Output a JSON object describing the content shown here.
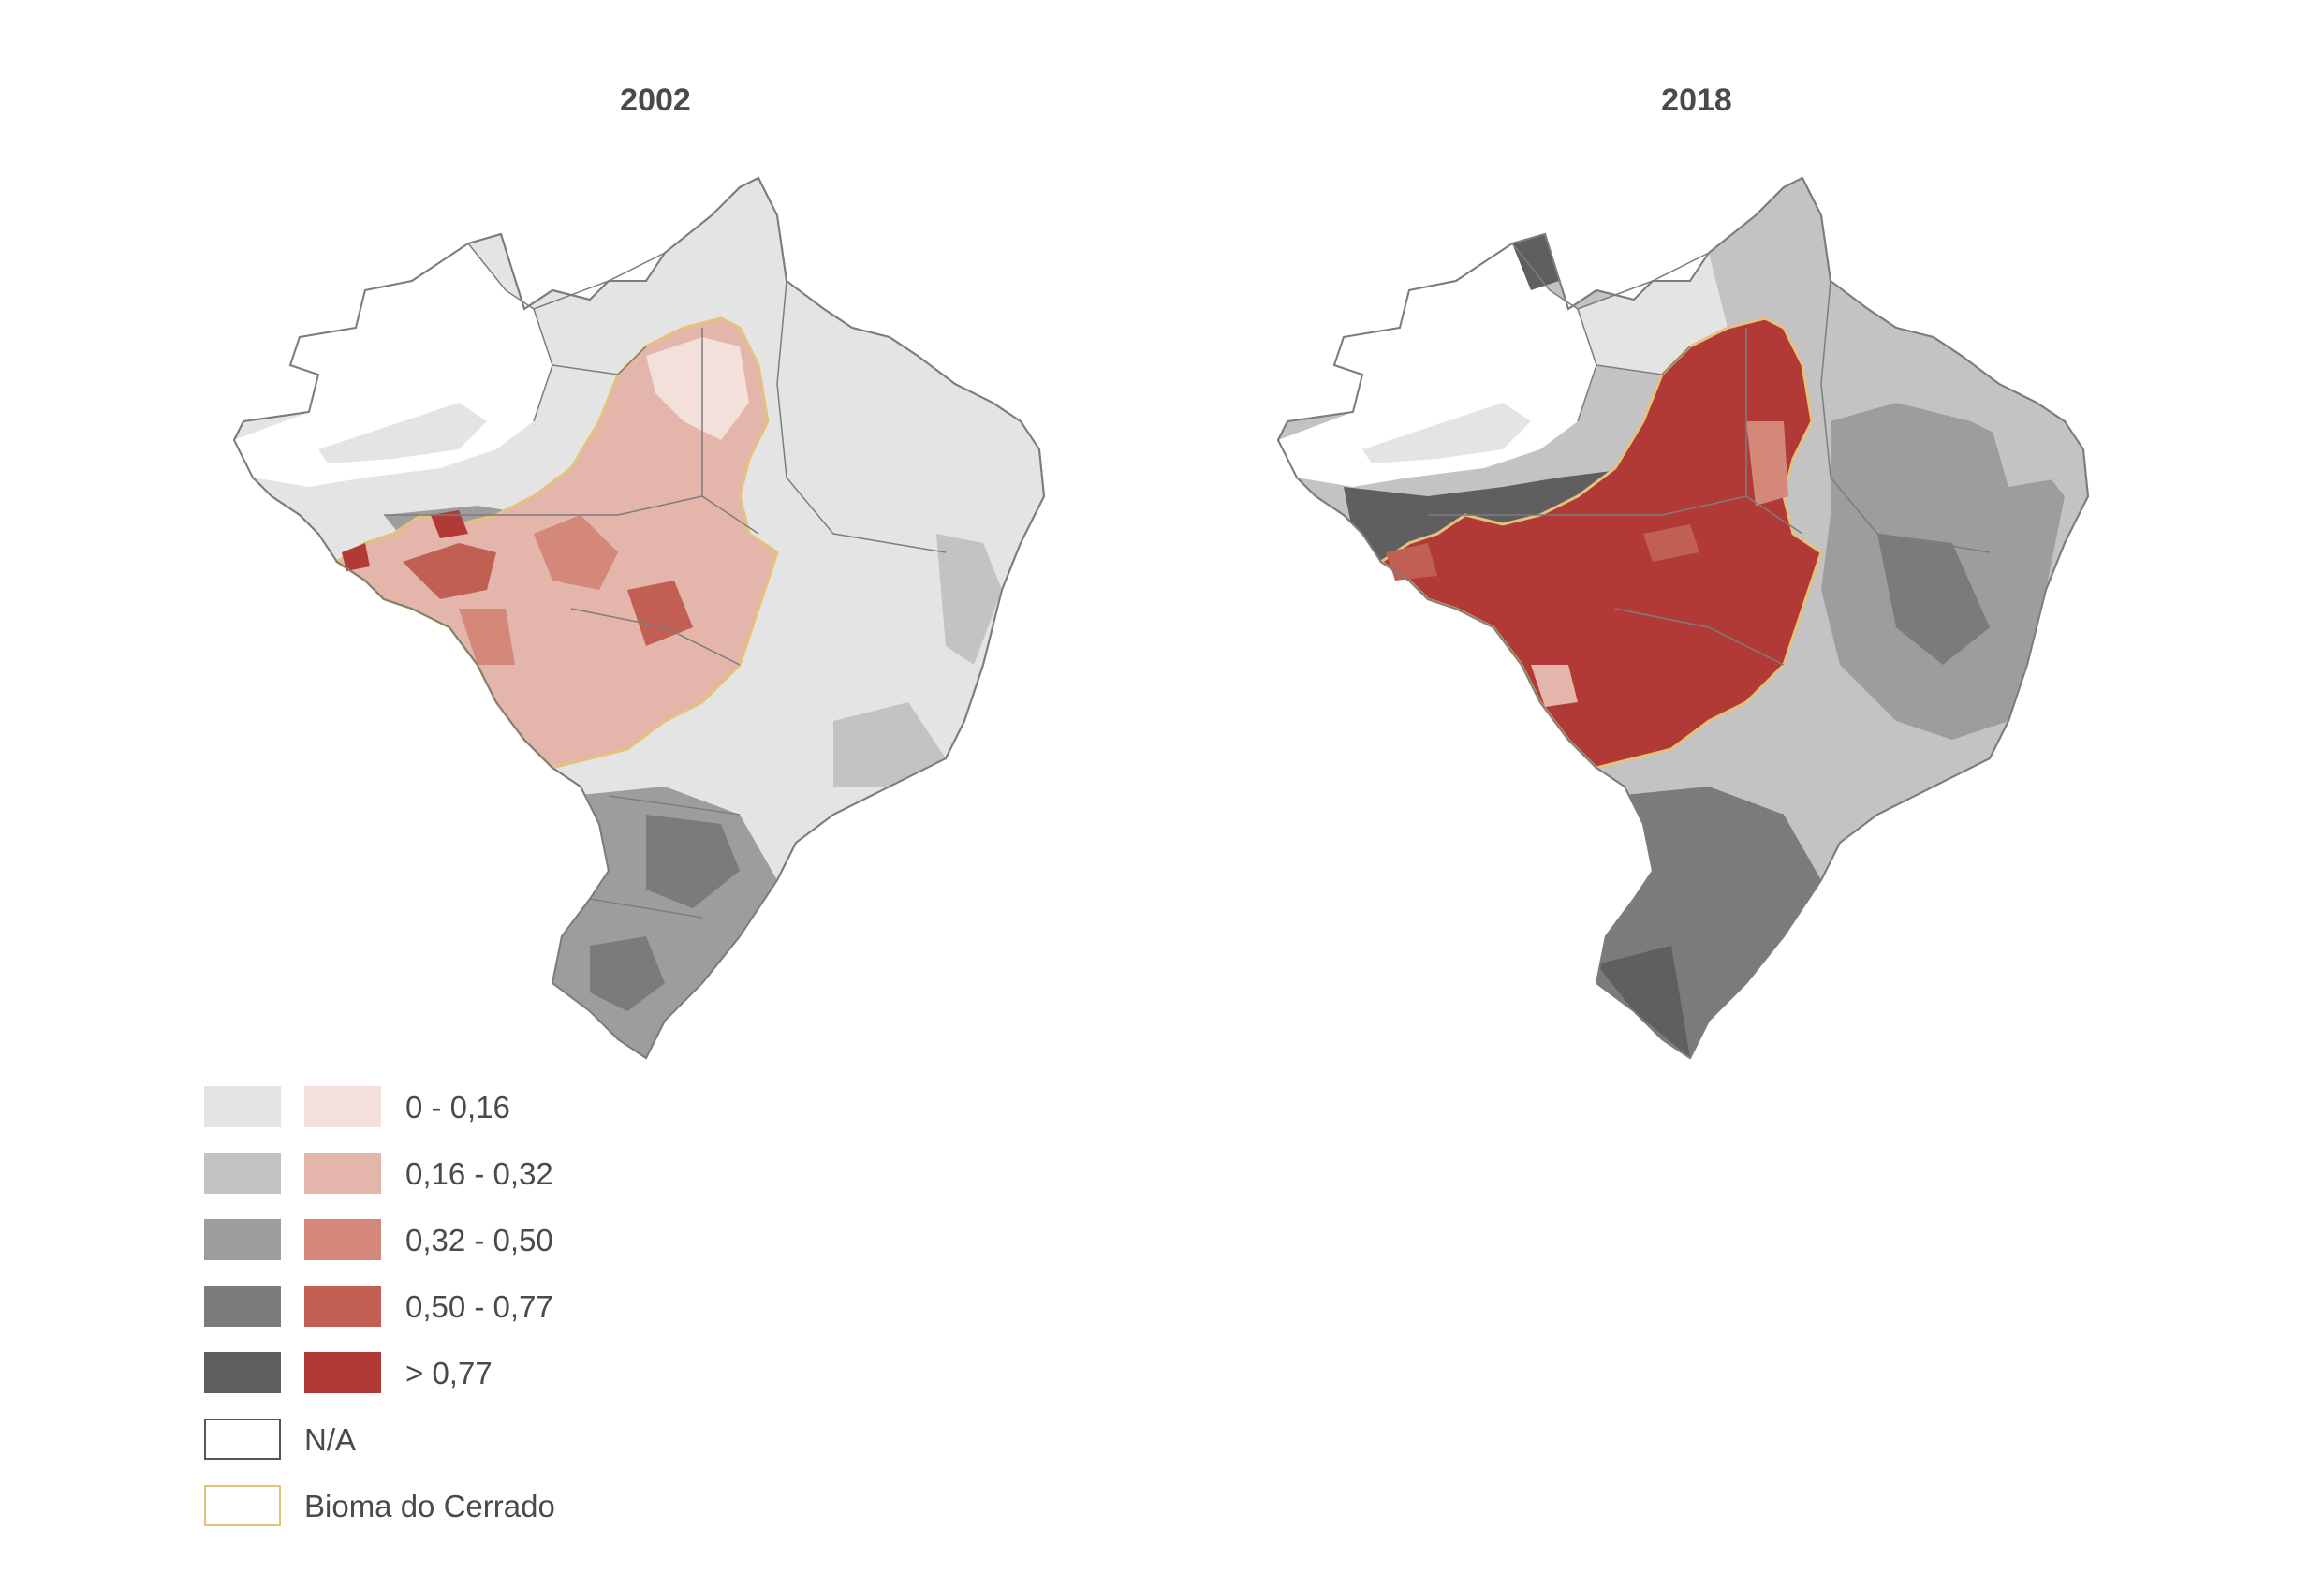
{
  "maps": [
    {
      "title": "2002"
    },
    {
      "title": "2018"
    }
  ],
  "legend": {
    "classes": [
      {
        "label": "0 - 0,16",
        "grey": "#e4e4e4",
        "red": "#f3e0da"
      },
      {
        "label": "0,16 - 0,32",
        "grey": "#c3c3c5",
        "red": "#e4b5aa"
      },
      {
        "label": "0,32 - 0,50",
        "grey": "#9d9d9f",
        "red": "#d3887a"
      },
      {
        "label": "0,50 - 0,77",
        "grey": "#7b7b7e",
        "red": "#c05f52"
      },
      {
        "label": "> 0,77",
        "grey": "#5f5f61",
        "red": "#b23a36"
      }
    ],
    "na": {
      "label": "N/A"
    },
    "biome": {
      "label": "Bioma do Cerrado",
      "color": "#e4c27c"
    }
  },
  "colors": {
    "state_border": "#7d7d7d",
    "background": "#ffffff"
  }
}
